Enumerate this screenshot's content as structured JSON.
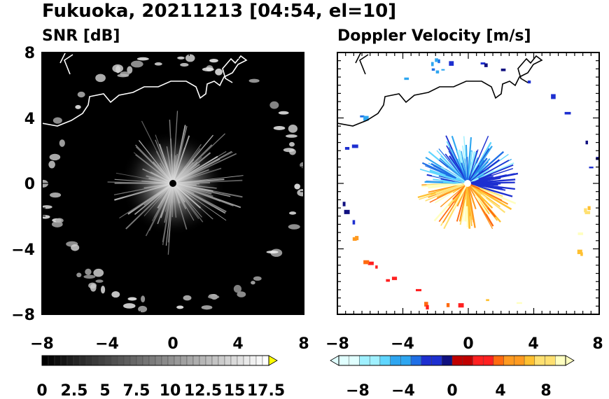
{
  "figure": {
    "title": "Fukuoka, 20211213 [04:54, el=10]"
  },
  "chart_data": [
    {
      "type": "heatmap",
      "panel_title": "SNR [dB]",
      "xlim": [
        -8,
        8
      ],
      "ylim": [
        -8,
        8
      ],
      "xticks": [
        "−8",
        "−4",
        "0",
        "4",
        "8"
      ],
      "yticks": [
        "8",
        "4",
        "0",
        "−4",
        "−8"
      ],
      "background": "#000000",
      "coastline_color": "#ffffff",
      "colorbar": {
        "ticks": [
          "0",
          "2.5",
          "5",
          "7.5",
          "10",
          "12.5",
          "15",
          "17.5"
        ],
        "range": [
          0,
          18
        ],
        "extend": "max",
        "low_color": "#000000",
        "high_color": "#ffffff",
        "extend_color": "#ffff00"
      }
    },
    {
      "type": "heatmap",
      "panel_title": "Doppler Velocity [m/s]",
      "xlim": [
        -8,
        8
      ],
      "ylim": [
        -8,
        8
      ],
      "xticks": [
        "−8",
        "−4",
        "0",
        "4",
        "8"
      ],
      "yticks": [
        "8",
        "4",
        "0",
        "−4",
        "−8"
      ],
      "background": "#ffffff",
      "coastline_color": "#000000",
      "colorbar": {
        "ticks": [
          "−8",
          "−4",
          "0",
          "4",
          "8"
        ],
        "range": [
          -10,
          10
        ],
        "extend": "both",
        "negative_colors": [
          "#e0ffff",
          "#9ff0ff",
          "#5fd6ff",
          "#2ea6f0",
          "#1f6fe6",
          "#1d2fd0",
          "#101080"
        ],
        "positive_colors": [
          "#c00000",
          "#ff2020",
          "#ff6a10",
          "#ff9a20",
          "#ffc030",
          "#ffe070",
          "#ffffc0"
        ]
      }
    }
  ]
}
